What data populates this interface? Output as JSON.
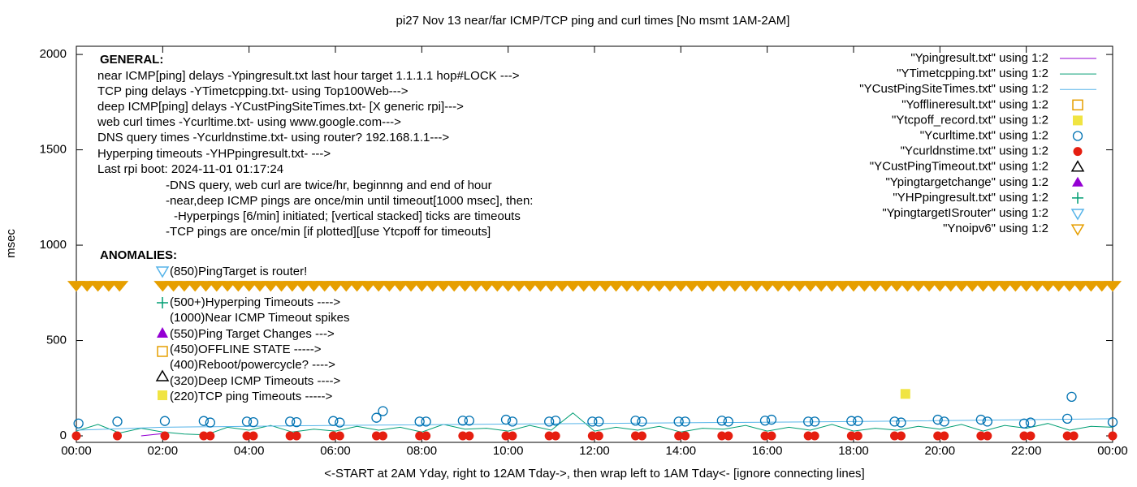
{
  "chart_data": {
    "type": "scatter",
    "title": "pi27 Nov 13  near/far ICMP/TCP ping and curl times [No msmt 1AM-2AM]",
    "x_label": "<-START at 2AM Yday, right to 12AM Tday->, then wrap left to 1AM Tday<- [ignore connecting lines]",
    "y_label": "msec",
    "xlim": [
      0,
      24
    ],
    "ylim": [
      -34,
      2043
    ],
    "xticks": [
      {
        "value": 0,
        "label": "00:00"
      },
      {
        "value": 2,
        "label": "02:00"
      },
      {
        "value": 4,
        "label": "04:00"
      },
      {
        "value": 6,
        "label": "06:00"
      },
      {
        "value": 8,
        "label": "08:00"
      },
      {
        "value": 10,
        "label": "10:00"
      },
      {
        "value": 12,
        "label": "12:00"
      },
      {
        "value": 14,
        "label": "14:00"
      },
      {
        "value": 16,
        "label": "16:00"
      },
      {
        "value": 18,
        "label": "18:00"
      },
      {
        "value": 20,
        "label": "20:00"
      },
      {
        "value": 22,
        "label": "22:00"
      },
      {
        "value": 24,
        "label": "00:00"
      }
    ],
    "yticks": [
      0,
      500,
      1000,
      1500,
      2000
    ],
    "grid": false,
    "legend": "top-right",
    "annotations": [
      "GENERAL:",
      "near ICMP[ping] delays -Ypingresult.txt last hour target 1.1.1.1 hop#LOCK --->",
      "TCP ping delays -YTimetcpping.txt- using Top100Web--->",
      "deep ICMP[ping] delays -YCustPingSiteTimes.txt- [X generic rpi]--->",
      "web curl times -Ycurltime.txt- using www.google.com--->",
      "DNS query times -Ycurldnstime.txt- using router? 192.168.1.1--->",
      "Hyperping timeouts -YHPpingresult.txt- --->",
      "Last rpi boot: 2024-11-01 01:17:24",
      "-DNS query, web curl are twice/hr, beginnng and end of hour",
      "-near,deep ICMP pings are once/min until timeout[1000 msec], then:",
      "-Hyperpings [6/min] initiated; [vertical stacked] ticks are timeouts",
      "-TCP pings are once/min [if plotted][use Ytcpoff for timeouts]",
      "ANOMALIES:",
      "(850)PingTarget is router!",
      "(500+)Hyperping Timeouts ---->",
      "(1000)Near ICMP Timeout spikes",
      "(550)Ping Target Changes --->",
      "(450)OFFLINE STATE ----->",
      "(400)Reboot/powercycle? ---->",
      "(320)Deep ICMP Timeouts ---->",
      "(220)TCP ping Timeouts ----->"
    ],
    "series": [
      {
        "name": "\"Ypingresult.txt\" using 1:2",
        "color": "#9400d3",
        "marker": "line",
        "x": [
          1.5,
          2.0,
          2.05
        ],
        "values": [
          0,
          12,
          0
        ]
      },
      {
        "name": "\"YTimetcpping.txt\" using 1:2",
        "color": "#009e73",
        "marker": "line",
        "x": [
          0,
          0.5,
          1,
          1.5,
          2,
          2.5,
          3,
          3.5,
          4,
          4.5,
          5,
          5.5,
          6,
          6.5,
          7,
          7.5,
          8,
          8.5,
          9,
          9.5,
          10,
          10.5,
          11,
          11.5,
          12,
          12.5,
          13,
          13.5,
          14,
          14.5,
          15,
          15.5,
          16,
          16.5,
          17,
          17.5,
          18,
          18.5,
          19,
          19.5,
          20,
          20.5,
          21,
          21.5,
          22,
          22.5,
          23,
          23.5,
          24
        ],
        "values": [
          25,
          60,
          15,
          40,
          20,
          10,
          5,
          45,
          30,
          55,
          20,
          35,
          25,
          50,
          30,
          45,
          20,
          60,
          35,
          40,
          25,
          55,
          30,
          120,
          25,
          45,
          30,
          50,
          20,
          40,
          35,
          55,
          25,
          45,
          30,
          60,
          25,
          40,
          30,
          50,
          35,
          60,
          25,
          55,
          40,
          65,
          30,
          50,
          45
        ]
      },
      {
        "name": "\"YCustPingSiteTimes.txt\" using 1:2",
        "color": "#56b4e9",
        "marker": "line",
        "x": [
          0,
          2,
          6,
          12,
          18,
          24
        ],
        "values": [
          30,
          45,
          55,
          65,
          75,
          90
        ]
      },
      {
        "name": "\"Yofflineresult.txt\" using 1:2",
        "color": "#e69f00",
        "marker": "square-open",
        "x": [],
        "values": []
      },
      {
        "name": "\"Ytcpoff_record.txt\" using 1:2",
        "color": "#f0e442",
        "marker": "square",
        "x": [
          19.2
        ],
        "values": [
          220
        ]
      },
      {
        "name": "\"Ycurltime.txt\" using 1:2",
        "color": "#0072b2",
        "marker": "circle-open",
        "x": [
          0.05,
          0.95,
          2.05,
          2.95,
          3.1,
          3.95,
          4.1,
          4.95,
          5.1,
          5.95,
          6.1,
          6.95,
          7.1,
          7.95,
          8.1,
          8.95,
          9.1,
          9.95,
          10.1,
          10.95,
          11.1,
          11.95,
          12.1,
          12.95,
          13.1,
          13.95,
          14.1,
          14.95,
          15.1,
          15.95,
          16.1,
          16.95,
          17.1,
          17.95,
          18.1,
          18.95,
          19.1,
          19.95,
          20.1,
          20.95,
          21.1,
          21.95,
          22.1,
          22.95,
          23.05,
          24
        ],
        "values": [
          65,
          75,
          78,
          78,
          70,
          75,
          72,
          75,
          72,
          78,
          70,
          95,
          130,
          75,
          75,
          80,
          80,
          85,
          75,
          75,
          80,
          75,
          75,
          80,
          75,
          75,
          75,
          80,
          75,
          80,
          85,
          75,
          75,
          78,
          78,
          75,
          70,
          85,
          75,
          85,
          75,
          65,
          70,
          90,
          205,
          72
        ]
      },
      {
        "name": "\"Ycurldnstime.txt\" using 1:2",
        "color": "#e51e10",
        "marker": "circle",
        "x": [
          0,
          0.95,
          2.05,
          2.95,
          3.1,
          3.95,
          4.1,
          4.95,
          5.1,
          5.95,
          6.1,
          6.95,
          7.1,
          7.95,
          8.1,
          8.95,
          9.1,
          9.95,
          10.1,
          10.95,
          11.1,
          11.95,
          12.1,
          12.95,
          13.1,
          13.95,
          14.1,
          14.95,
          15.1,
          15.95,
          16.1,
          16.95,
          17.1,
          17.95,
          18.1,
          18.95,
          19.1,
          19.95,
          20.1,
          20.95,
          21.1,
          21.95,
          22.1,
          22.95,
          23.1,
          24
        ],
        "values": [
          0,
          0,
          0,
          0,
          0,
          0,
          0,
          0,
          0,
          0,
          0,
          0,
          0,
          0,
          0,
          0,
          0,
          0,
          0,
          0,
          0,
          0,
          0,
          0,
          0,
          0,
          0,
          0,
          0,
          0,
          0,
          0,
          0,
          0,
          0,
          0,
          0,
          0,
          0,
          0,
          0,
          0,
          0,
          0,
          0,
          0
        ]
      },
      {
        "name": "\"YCustPingTimeout.txt\" using 1:2",
        "color": "#000000",
        "marker": "triangle-up-open",
        "x": [],
        "values": []
      },
      {
        "name": "\"Ypingtargetchange\" using 1:2",
        "color": "#9400d3",
        "marker": "triangle-up",
        "x": [],
        "values": []
      },
      {
        "name": "\"YHPpingresult.txt\" using 1:2",
        "color": "#009e73",
        "marker": "plus",
        "x": [],
        "values": []
      },
      {
        "name": "\"YpingtargetISrouter\" using 1:2",
        "color": "#56b4e9",
        "marker": "triangle-down-open",
        "x": [],
        "values": []
      },
      {
        "name": "\"Ynoipv6\" using 1:2",
        "color": "#e69f00",
        "marker": "triangle-down-open",
        "x": [
          0,
          0.25,
          0.5,
          0.75,
          1,
          2,
          2.25,
          2.5,
          2.75,
          3,
          3.25,
          3.5,
          3.75,
          4,
          4.25,
          4.5,
          4.75,
          5,
          5.25,
          5.5,
          5.75,
          6,
          6.25,
          6.5,
          6.75,
          7,
          7.25,
          7.5,
          7.75,
          8,
          8.25,
          8.5,
          8.75,
          9,
          9.25,
          9.5,
          9.75,
          10,
          10.25,
          10.5,
          10.75,
          11,
          11.25,
          11.5,
          11.75,
          12,
          12.25,
          12.5,
          12.75,
          13,
          13.25,
          13.5,
          13.75,
          14,
          14.25,
          14.5,
          14.75,
          15,
          15.25,
          15.5,
          15.75,
          16,
          16.25,
          16.5,
          16.75,
          17,
          17.25,
          17.5,
          17.75,
          18,
          18.25,
          18.5,
          18.75,
          19,
          19.25,
          19.5,
          19.75,
          20,
          20.25,
          20.5,
          20.75,
          21,
          21.25,
          21.5,
          21.75,
          22,
          22.25,
          22.5,
          22.75,
          23,
          23.25,
          23.5,
          23.75,
          24
        ],
        "values": [
          785,
          785,
          785,
          785,
          785,
          785,
          785,
          785,
          785,
          785,
          785,
          785,
          785,
          785,
          785,
          785,
          785,
          785,
          785,
          785,
          785,
          785,
          785,
          785,
          785,
          785,
          785,
          785,
          785,
          785,
          785,
          785,
          785,
          785,
          785,
          785,
          785,
          785,
          785,
          785,
          785,
          785,
          785,
          785,
          785,
          785,
          785,
          785,
          785,
          785,
          785,
          785,
          785,
          785,
          785,
          785,
          785,
          785,
          785,
          785,
          785,
          785,
          785,
          785,
          785,
          785,
          785,
          785,
          785,
          785,
          785,
          785,
          785,
          785,
          785,
          785,
          785,
          785,
          785,
          785,
          785,
          785,
          785,
          785,
          785,
          785,
          785,
          785,
          785,
          785,
          785,
          785,
          785,
          785
        ]
      }
    ]
  }
}
